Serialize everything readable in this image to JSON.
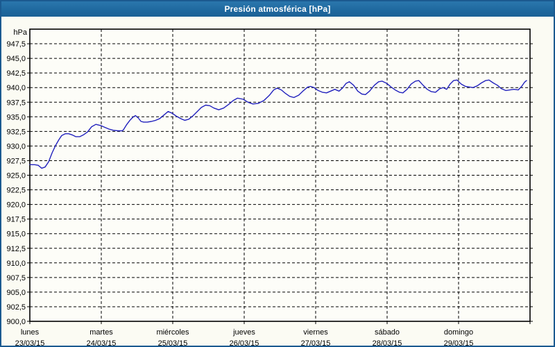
{
  "window": {
    "title": "Presión atmosférica [hPa]"
  },
  "colors": {
    "titlebar": "#1e689e",
    "frame": "#1b5a90",
    "background": "#fbfbf3",
    "plot_background": "#fdfdf8",
    "grid": "#000000",
    "axis_text": "#000000",
    "line": "#2121bd"
  },
  "chart_data": {
    "type": "line",
    "title": "Presión atmosférica [hPa]",
    "ylabel": "hPa",
    "ylim": [
      900,
      950
    ],
    "y_tick_step": 2.5,
    "y_tick_labels": [
      "900,0",
      "902,5",
      "905,0",
      "907,5",
      "910,0",
      "912,5",
      "915,0",
      "917,5",
      "920,0",
      "922,5",
      "925,0",
      "927,5",
      "930,0",
      "932,5",
      "935,0",
      "937,5",
      "940,0",
      "942,5",
      "945,0",
      "947,5"
    ],
    "x_days": [
      {
        "name": "lunes",
        "date": "23/03/15"
      },
      {
        "name": "martes",
        "date": "24/03/15"
      },
      {
        "name": "miércoles",
        "date": "25/03/15"
      },
      {
        "name": "jueves",
        "date": "26/03/15"
      },
      {
        "name": "viernes",
        "date": "27/03/15"
      },
      {
        "name": "sábado",
        "date": "28/03/15"
      },
      {
        "name": "domingo",
        "date": "29/03/15"
      }
    ],
    "xlim_days": [
      0,
      7
    ],
    "grid": "dashed",
    "legend": "none",
    "series": [
      {
        "name": "Presión atmosférica",
        "color": "#2121bd",
        "points": [
          [
            0.0,
            926.8
          ],
          [
            0.068,
            926.8
          ],
          [
            0.117,
            926.7
          ],
          [
            0.165,
            926.2
          ],
          [
            0.214,
            926.4
          ],
          [
            0.263,
            927.3
          ],
          [
            0.311,
            928.8
          ],
          [
            0.36,
            930.1
          ],
          [
            0.408,
            931.1
          ],
          [
            0.447,
            931.8
          ],
          [
            0.496,
            932.1
          ],
          [
            0.544,
            932.1
          ],
          [
            0.593,
            931.9
          ],
          [
            0.642,
            931.6
          ],
          [
            0.7,
            931.6
          ],
          [
            0.749,
            931.9
          ],
          [
            0.807,
            932.4
          ],
          [
            0.865,
            933.3
          ],
          [
            0.924,
            933.7
          ],
          [
            0.992,
            933.5
          ],
          [
            1.05,
            933.2
          ],
          [
            1.108,
            932.9
          ],
          [
            1.167,
            932.7
          ],
          [
            1.235,
            932.6
          ],
          [
            1.293,
            932.6
          ],
          [
            1.312,
            932.8
          ],
          [
            1.351,
            933.6
          ],
          [
            1.4,
            934.4
          ],
          [
            1.449,
            935.0
          ],
          [
            1.478,
            935.2
          ],
          [
            1.517,
            934.8
          ],
          [
            1.556,
            934.2
          ],
          [
            1.594,
            934.1
          ],
          [
            1.643,
            934.1
          ],
          [
            1.701,
            934.2
          ],
          [
            1.76,
            934.4
          ],
          [
            1.818,
            934.7
          ],
          [
            1.876,
            935.3
          ],
          [
            1.935,
            935.9
          ],
          [
            1.993,
            935.6
          ],
          [
            2.051,
            935.1
          ],
          [
            2.11,
            934.7
          ],
          [
            2.168,
            934.4
          ],
          [
            2.226,
            934.6
          ],
          [
            2.285,
            935.2
          ],
          [
            2.343,
            935.9
          ],
          [
            2.401,
            936.6
          ],
          [
            2.46,
            937.0
          ],
          [
            2.518,
            936.9
          ],
          [
            2.576,
            936.5
          ],
          [
            2.644,
            936.2
          ],
          [
            2.713,
            936.5
          ],
          [
            2.781,
            937.1
          ],
          [
            2.849,
            937.8
          ],
          [
            2.907,
            938.2
          ],
          [
            2.985,
            938.0
          ],
          [
            3.053,
            937.5
          ],
          [
            3.121,
            937.2
          ],
          [
            3.199,
            937.3
          ],
          [
            3.277,
            937.8
          ],
          [
            3.354,
            938.7
          ],
          [
            3.413,
            939.6
          ],
          [
            3.461,
            939.9
          ],
          [
            3.52,
            939.6
          ],
          [
            3.578,
            939.0
          ],
          [
            3.636,
            938.5
          ],
          [
            3.695,
            938.3
          ],
          [
            3.763,
            938.7
          ],
          [
            3.831,
            939.5
          ],
          [
            3.889,
            940.1
          ],
          [
            3.928,
            940.2
          ],
          [
            3.977,
            940.0
          ],
          [
            4.035,
            939.5
          ],
          [
            4.093,
            939.2
          ],
          [
            4.152,
            939.1
          ],
          [
            4.21,
            939.4
          ],
          [
            4.268,
            939.7
          ],
          [
            4.327,
            939.4
          ],
          [
            4.375,
            939.9
          ],
          [
            4.424,
            940.7
          ],
          [
            4.472,
            941.0
          ],
          [
            4.531,
            940.4
          ],
          [
            4.589,
            939.4
          ],
          [
            4.647,
            938.9
          ],
          [
            4.696,
            938.8
          ],
          [
            4.754,
            939.4
          ],
          [
            4.822,
            940.4
          ],
          [
            4.881,
            941.0
          ],
          [
            4.929,
            941.1
          ],
          [
            4.997,
            940.7
          ],
          [
            5.056,
            940.1
          ],
          [
            5.114,
            939.6
          ],
          [
            5.172,
            939.2
          ],
          [
            5.221,
            939.1
          ],
          [
            5.279,
            939.7
          ],
          [
            5.337,
            940.6
          ],
          [
            5.396,
            941.1
          ],
          [
            5.444,
            941.2
          ],
          [
            5.503,
            940.4
          ],
          [
            5.561,
            939.7
          ],
          [
            5.619,
            939.3
          ],
          [
            5.678,
            939.2
          ],
          [
            5.736,
            939.8
          ],
          [
            5.784,
            940.0
          ],
          [
            5.833,
            939.7
          ],
          [
            5.882,
            940.6
          ],
          [
            5.93,
            941.2
          ],
          [
            5.979,
            941.3
          ],
          [
            6.037,
            940.6
          ],
          [
            6.096,
            940.2
          ],
          [
            6.154,
            940.1
          ],
          [
            6.203,
            940.0
          ],
          [
            6.261,
            940.3
          ],
          [
            6.319,
            940.8
          ],
          [
            6.378,
            941.2
          ],
          [
            6.426,
            941.3
          ],
          [
            6.485,
            940.8
          ],
          [
            6.543,
            940.4
          ],
          [
            6.601,
            939.8
          ],
          [
            6.66,
            939.5
          ],
          [
            6.718,
            939.6
          ],
          [
            6.776,
            939.7
          ],
          [
            6.835,
            939.6
          ],
          [
            6.883,
            940.2
          ],
          [
            6.922,
            940.9
          ],
          [
            6.951,
            941.2
          ]
        ]
      }
    ]
  }
}
